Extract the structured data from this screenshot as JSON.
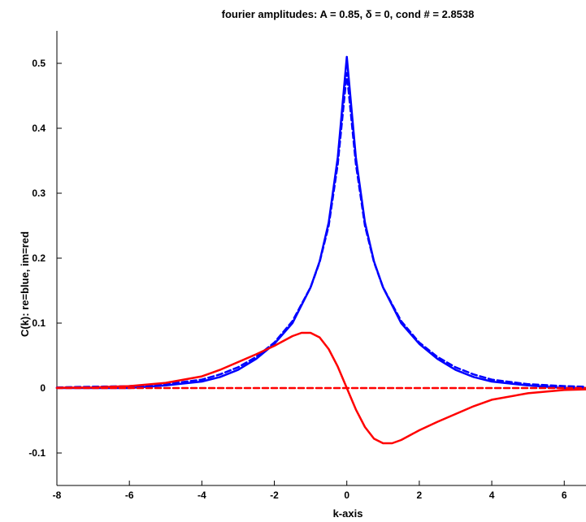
{
  "chart_data": {
    "type": "line",
    "title": "fourier amplitudes: A = 0.85, δ = 0, cond # = 2.8538",
    "xlabel": "k-axis",
    "ylabel": "C(k):  re=blue, im=red",
    "xlim": [
      -8,
      6.6
    ],
    "ylim": [
      -0.15,
      0.55
    ],
    "xticks": [
      -8,
      -6,
      -4,
      -2,
      0,
      2,
      4,
      6
    ],
    "yticks": [
      -0.1,
      0,
      0.1,
      0.2,
      0.3,
      0.4,
      0.5
    ],
    "xtick_labels": [
      "-8",
      "-6",
      "-4",
      "-2",
      "0",
      "2",
      "4",
      "6"
    ],
    "ytick_labels": [
      "-0.1",
      "0",
      "0.1",
      "0.2",
      "0.3",
      "0.4",
      "0.5"
    ],
    "grid": false,
    "legend": "none",
    "colors": {
      "blue": "#0000ff",
      "red": "#ff0000",
      "axis": "#000000"
    },
    "series": [
      {
        "color": "#0000ff",
        "style": "solid",
        "x": [
          -8,
          -7,
          -6,
          -5,
          -4,
          -3.5,
          -3,
          -2.5,
          -2,
          -1.5,
          -1,
          -0.75,
          -0.5,
          -0.25,
          0,
          0.25,
          0.5,
          0.75,
          1,
          1.5,
          2,
          2.5,
          3,
          3.5,
          4,
          5,
          6,
          6.6
        ],
        "y": [
          0.0,
          0.0,
          0.0,
          0.004,
          0.01,
          0.017,
          0.028,
          0.045,
          0.068,
          0.1,
          0.155,
          0.195,
          0.255,
          0.355,
          0.51,
          0.355,
          0.255,
          0.195,
          0.155,
          0.1,
          0.068,
          0.045,
          0.028,
          0.017,
          0.01,
          0.004,
          0.0,
          0.0
        ]
      },
      {
        "color": "#0000ff",
        "style": "dashed",
        "x": [
          -8,
          -7,
          -6,
          -5,
          -4,
          -3.5,
          -3,
          -2.5,
          -2,
          -1.5,
          -1,
          -0.75,
          -0.5,
          -0.25,
          0,
          0.25,
          0.5,
          0.75,
          1,
          1.5,
          2,
          2.5,
          3,
          3.5,
          4,
          5,
          6,
          6.6
        ],
        "y": [
          0.001,
          0.002,
          0.003,
          0.006,
          0.013,
          0.021,
          0.032,
          0.048,
          0.07,
          0.103,
          0.155,
          0.194,
          0.25,
          0.345,
          0.485,
          0.345,
          0.25,
          0.194,
          0.155,
          0.103,
          0.07,
          0.048,
          0.032,
          0.021,
          0.013,
          0.006,
          0.003,
          0.002
        ]
      },
      {
        "color": "#ff0000",
        "style": "solid",
        "x": [
          -8,
          -7,
          -6,
          -5,
          -4,
          -3.5,
          -3,
          -2.5,
          -2,
          -1.5,
          -1.25,
          -1,
          -0.75,
          -0.5,
          -0.25,
          0,
          0.25,
          0.5,
          0.75,
          1,
          1.25,
          1.5,
          2,
          2.5,
          3,
          3.5,
          4,
          5,
          6,
          6.6
        ],
        "y": [
          0.0005,
          0.001,
          0.003,
          0.008,
          0.018,
          0.028,
          0.04,
          0.052,
          0.065,
          0.08,
          0.085,
          0.085,
          0.078,
          0.06,
          0.033,
          0.0,
          -0.033,
          -0.06,
          -0.078,
          -0.085,
          -0.085,
          -0.08,
          -0.065,
          -0.052,
          -0.04,
          -0.028,
          -0.018,
          -0.008,
          -0.003,
          -0.002
        ]
      },
      {
        "color": "#ff0000",
        "style": "dashed",
        "x": [
          -8,
          -6,
          -4,
          -2,
          0,
          2,
          4,
          6,
          6.6
        ],
        "y": [
          0.0,
          0.0,
          0.0,
          0.0,
          0.0,
          0.0,
          0.0,
          0.0,
          0.0
        ]
      }
    ]
  }
}
